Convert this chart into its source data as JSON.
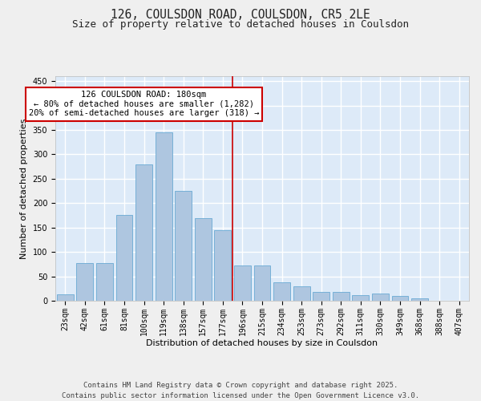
{
  "title": "126, COULSDON ROAD, COULSDON, CR5 2LE",
  "subtitle": "Size of property relative to detached houses in Coulsdon",
  "xlabel": "Distribution of detached houses by size in Coulsdon",
  "ylabel": "Number of detached properties",
  "categories": [
    "23sqm",
    "42sqm",
    "61sqm",
    "81sqm",
    "100sqm",
    "119sqm",
    "138sqm",
    "157sqm",
    "177sqm",
    "196sqm",
    "215sqm",
    "234sqm",
    "253sqm",
    "273sqm",
    "292sqm",
    "311sqm",
    "330sqm",
    "349sqm",
    "368sqm",
    "388sqm",
    "407sqm"
  ],
  "values": [
    13,
    78,
    78,
    175,
    280,
    345,
    225,
    170,
    145,
    72,
    72,
    38,
    29,
    18,
    18,
    12,
    15,
    10,
    5,
    0,
    0
  ],
  "bar_color": "#aec6e0",
  "bar_edge_color": "#6aaad4",
  "background_color": "#ddeaf8",
  "grid_color": "#ffffff",
  "property_line_color": "#cc0000",
  "annotation_text": "126 COULSDON ROAD: 180sqm\n← 80% of detached houses are smaller (1,282)\n20% of semi-detached houses are larger (318) →",
  "annotation_box_edgecolor": "#cc0000",
  "ylim": [
    0,
    460
  ],
  "yticks": [
    0,
    50,
    100,
    150,
    200,
    250,
    300,
    350,
    400,
    450
  ],
  "title_fontsize": 10.5,
  "subtitle_fontsize": 9,
  "axis_label_fontsize": 8,
  "tick_fontsize": 7,
  "annotation_fontsize": 7.5,
  "footer_fontsize": 6.5,
  "footer_text": "Contains HM Land Registry data © Crown copyright and database right 2025.\nContains public sector information licensed under the Open Government Licence v3.0."
}
